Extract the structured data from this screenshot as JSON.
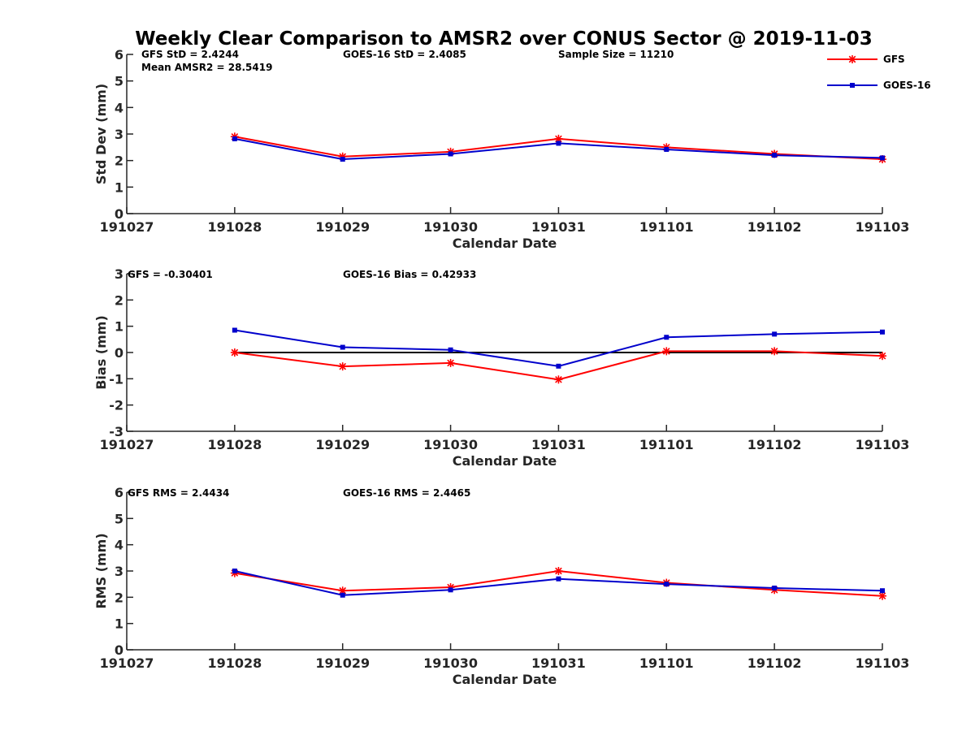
{
  "chart_data": {
    "title": "Weekly Clear Comparison to AMSR2 over CONUS Sector @ 2019-11-03",
    "x_tick_labels": [
      "191027",
      "191028",
      "191029",
      "191030",
      "191031",
      "191101",
      "191102",
      "191103"
    ],
    "series_colors": {
      "GFS": "#ff0000",
      "GOES-16": "#0000cc",
      "zero_line": "#000000"
    },
    "legend": {
      "placement": "top-right",
      "entries": [
        {
          "name": "GFS",
          "color": "#ff0000",
          "marker": "asterisk"
        },
        {
          "name": "GOES-16",
          "color": "#0000cc",
          "marker": "square"
        }
      ]
    },
    "panels": [
      {
        "type": "line",
        "xlabel": "Calendar Date",
        "ylabel": "Std Dev (mm)",
        "ylim": [
          0,
          6
        ],
        "yticks": [
          "0",
          "1",
          "2",
          "3",
          "4",
          "5",
          "6"
        ],
        "annotations": [
          "GFS StD = 2.4244",
          "Mean AMSR2 = 28.5419",
          "GOES-16 StD = 2.4085",
          "Sample Size = 11210"
        ],
        "zero_line": false,
        "series": [
          {
            "name": "GFS",
            "x": [
              "191028",
              "191029",
              "191030",
              "191031",
              "191101",
              "191102",
              "191103"
            ],
            "values": [
              2.9,
              2.15,
              2.33,
              2.82,
              2.5,
              2.25,
              2.05
            ]
          },
          {
            "name": "GOES-16",
            "x": [
              "191028",
              "191029",
              "191030",
              "191031",
              "191101",
              "191102",
              "191103"
            ],
            "values": [
              2.82,
              2.05,
              2.25,
              2.65,
              2.42,
              2.2,
              2.1
            ]
          }
        ]
      },
      {
        "type": "line",
        "xlabel": "Calendar Date",
        "ylabel": "Bias (mm)",
        "ylim": [
          -3,
          3
        ],
        "yticks": [
          "-3",
          "-2",
          "-1",
          "0",
          "1",
          "2",
          "3"
        ],
        "annotations": [
          "GFS = -0.30401",
          "GOES-16 Bias  = 0.42933"
        ],
        "zero_line": true,
        "series": [
          {
            "name": "GFS",
            "x": [
              "191028",
              "191029",
              "191030",
              "191031",
              "191101",
              "191102",
              "191103"
            ],
            "values": [
              0.0,
              -0.53,
              -0.4,
              -1.03,
              0.05,
              0.05,
              -0.13
            ]
          },
          {
            "name": "GOES-16",
            "x": [
              "191028",
              "191029",
              "191030",
              "191031",
              "191101",
              "191102",
              "191103"
            ],
            "values": [
              0.85,
              0.2,
              0.1,
              -0.52,
              0.58,
              0.7,
              0.78
            ]
          }
        ]
      },
      {
        "type": "line",
        "xlabel": "Calendar Date",
        "ylabel": "RMS (mm)",
        "ylim": [
          0,
          6
        ],
        "yticks": [
          "0",
          "1",
          "2",
          "3",
          "4",
          "5",
          "6"
        ],
        "annotations": [
          "GFS RMS = 2.4434",
          "GOES-16 RMS = 2.4465"
        ],
        "zero_line": false,
        "series": [
          {
            "name": "GFS",
            "x": [
              "191028",
              "191029",
              "191030",
              "191031",
              "191101",
              "191102",
              "191103"
            ],
            "values": [
              2.92,
              2.25,
              2.38,
              3.0,
              2.55,
              2.28,
              2.05
            ]
          },
          {
            "name": "GOES-16",
            "x": [
              "191028",
              "191029",
              "191030",
              "191031",
              "191101",
              "191102",
              "191103"
            ],
            "values": [
              3.0,
              2.08,
              2.28,
              2.7,
              2.5,
              2.35,
              2.25
            ]
          }
        ]
      }
    ]
  }
}
